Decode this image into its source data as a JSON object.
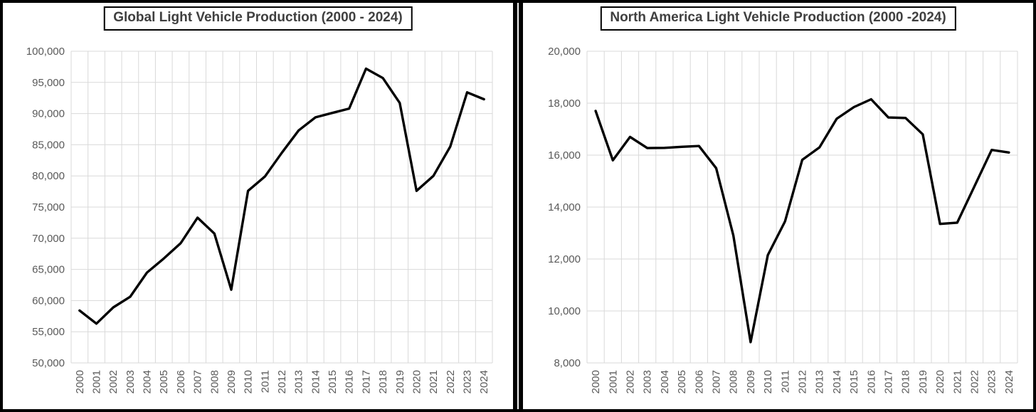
{
  "page": {
    "background_color": "#ffffff",
    "frame_color": "#000000",
    "gridline_color": "#d9d9d9",
    "tick_label_color": "#595959",
    "series_color": "#000000"
  },
  "chart_data": [
    {
      "type": "line",
      "title": "Global Light Vehicle Production (2000 - 2024)",
      "x": [
        2000,
        2001,
        2002,
        2003,
        2004,
        2005,
        2006,
        2007,
        2008,
        2009,
        2010,
        2011,
        2012,
        2013,
        2014,
        2015,
        2016,
        2017,
        2018,
        2019,
        2020,
        2021,
        2022,
        2023,
        2024
      ],
      "xtick_labels": [
        "2000",
        "2001",
        "2002",
        "2003",
        "2004",
        "2005",
        "2006",
        "2007",
        "2008",
        "2009",
        "2010",
        "2011",
        "2012",
        "2013",
        "2014",
        "2015",
        "2016",
        "2017",
        "2018",
        "2019",
        "2020",
        "2021",
        "2022",
        "2023",
        "2024"
      ],
      "values": [
        58400,
        56300,
        58900,
        60600,
        64500,
        66750,
        69200,
        73300,
        70750,
        61750,
        77600,
        79900,
        83700,
        87300,
        89400,
        90100,
        90800,
        97200,
        95700,
        91700,
        77600,
        80000,
        84700,
        93400,
        92300
      ],
      "ylim": [
        50000,
        100000
      ],
      "ytick_step": 5000,
      "ytick_labels": [
        "50,000",
        "55,000",
        "60,000",
        "65,000",
        "70,000",
        "75,000",
        "80,000",
        "85,000",
        "90,000",
        "95,000",
        "100,000"
      ],
      "grid": true,
      "legend": "none",
      "line_color": "#000000"
    },
    {
      "type": "line",
      "title": "North America Light Vehicle Production (2000 -2024)",
      "x": [
        2000,
        2001,
        2002,
        2003,
        2004,
        2005,
        2006,
        2007,
        2008,
        2009,
        2010,
        2011,
        2012,
        2013,
        2014,
        2015,
        2016,
        2017,
        2018,
        2019,
        2020,
        2021,
        2022,
        2023,
        2024
      ],
      "xtick_labels": [
        "2000",
        "2001",
        "2002",
        "2003",
        "2004",
        "2005",
        "2006",
        "2007",
        "2008",
        "2009",
        "2010",
        "2011",
        "2012",
        "2013",
        "2014",
        "2015",
        "2016",
        "2017",
        "2018",
        "2019",
        "2020",
        "2021",
        "2022",
        "2023",
        "2024"
      ],
      "values": [
        17700,
        15800,
        16700,
        16270,
        16280,
        16320,
        16350,
        15500,
        12900,
        8800,
        12150,
        13450,
        15820,
        16300,
        17400,
        17850,
        18150,
        17450,
        17430,
        16800,
        13350,
        13400,
        14800,
        16200,
        16100
      ],
      "ylim": [
        8000,
        20000
      ],
      "ytick_step": 2000,
      "ytick_labels": [
        "8,000",
        "10,000",
        "12,000",
        "14,000",
        "16,000",
        "18,000",
        "20,000"
      ],
      "grid": true,
      "legend": "none",
      "line_color": "#000000"
    }
  ]
}
